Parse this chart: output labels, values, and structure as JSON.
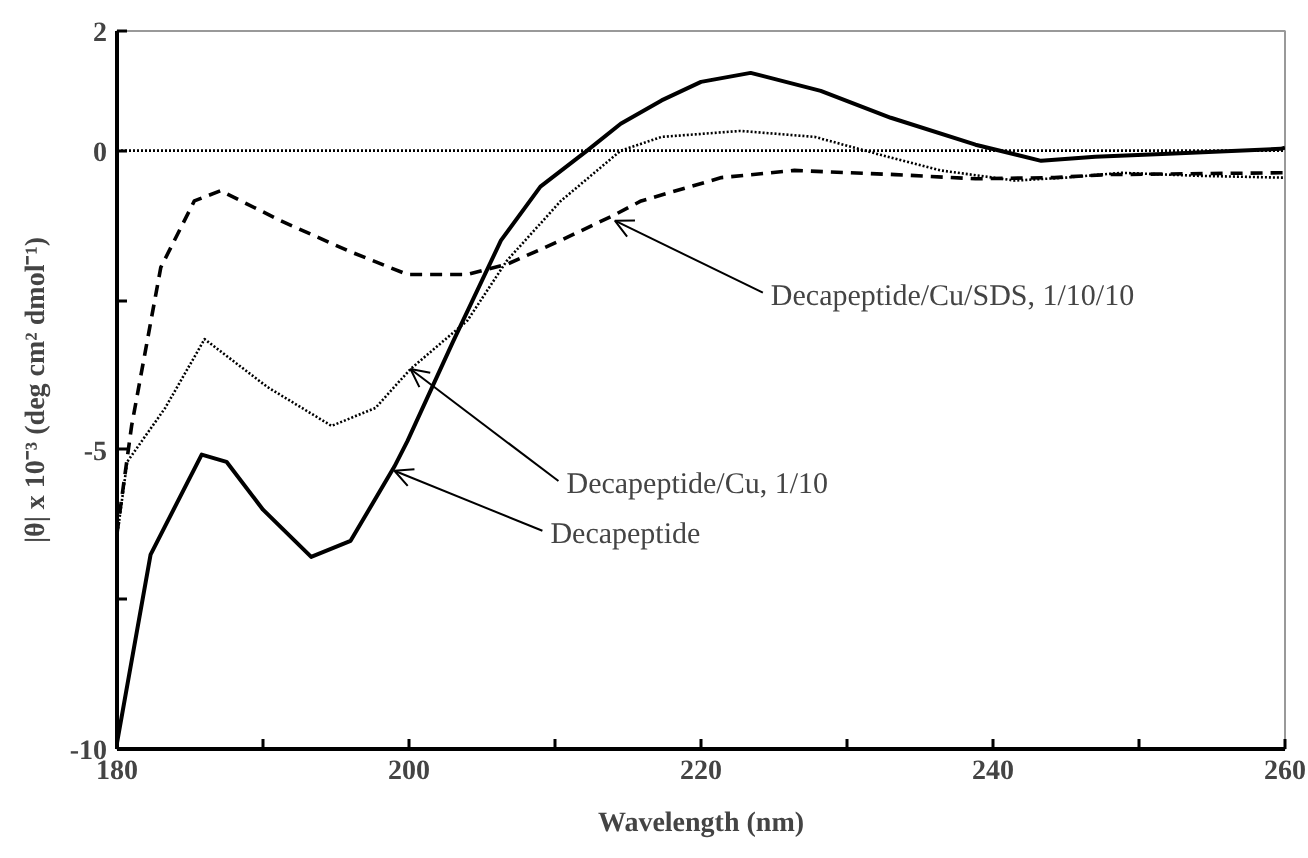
{
  "chart_data": {
    "type": "line",
    "xlabel": "Wavelength (nm)",
    "ylabel": "|θ| x 10⁻³ (deg cm² dmol⁻¹)",
    "xlim": [
      180,
      260
    ],
    "ylim": [
      -10,
      2
    ],
    "xticks": [
      180,
      {
        "value": 190,
        "label": null
      },
      200,
      {
        "value": 210,
        "label": null
      },
      220,
      {
        "value": 230,
        "label": null
      },
      240,
      {
        "value": 250,
        "label": null
      },
      260
    ],
    "yticks": [
      -10,
      {
        "value": -7.5,
        "label": null
      },
      -5,
      {
        "value": -2.5,
        "label": null
      },
      0,
      2
    ],
    "grid": false,
    "marker": "none",
    "ref_lines": [
      {
        "axis": "y",
        "value": 0,
        "color": "#000000",
        "line_style": "dotted"
      }
    ],
    "series": [
      {
        "color": "#000000",
        "line_style": "solid",
        "x": [
          180,
          182.3,
          185.8,
          187.5,
          190,
          193.3,
          196,
          199,
          199.9,
          203,
          206.3,
          209,
          212.2,
          214.5,
          217.3,
          220,
          223.4,
          228.2,
          233,
          238.8,
          243.3,
          247,
          252,
          259.7,
          260
        ],
        "values": [
          -9.9,
          -6.75,
          -5.08,
          -5.2,
          -6.0,
          -6.79,
          -6.52,
          -5.28,
          -4.85,
          -3.2,
          -1.5,
          -0.6,
          0,
          0.45,
          0.84,
          1.15,
          1.3,
          1.0,
          0.55,
          0.1,
          -0.17,
          -0.1,
          -0.05,
          0.03,
          0.05
        ]
      },
      {
        "color": "#000000",
        "line_style": "dotted",
        "x": [
          180,
          180.7,
          183.3,
          186,
          190.3,
          194.7,
          197.7,
          200.1,
          204,
          206.7,
          210.4,
          214.5,
          217.3,
          222.7,
          227.8,
          232.3,
          236.4,
          241.5,
          245,
          248.8,
          254,
          259.7,
          260
        ],
        "values": [
          -6.45,
          -5.2,
          -4.3,
          -3.15,
          -3.95,
          -4.6,
          -4.3,
          -3.65,
          -2.84,
          -1.84,
          -0.84,
          0,
          0.23,
          0.33,
          0.23,
          -0.07,
          -0.33,
          -0.5,
          -0.45,
          -0.37,
          -0.42,
          -0.45,
          -0.45
        ]
      },
      {
        "color": "#000000",
        "line_style": "dashed",
        "x": [
          180,
          180.3,
          181,
          183,
          185.3,
          187.1,
          191.2,
          195.8,
          199.9,
          204,
          206.7,
          210.4,
          214.1,
          215.9,
          221.4,
          226.4,
          233.3,
          238.8,
          244.2,
          247.8,
          259.7,
          260
        ],
        "values": [
          -6.4,
          -5.85,
          -4.6,
          -1.95,
          -0.84,
          -0.67,
          -1.17,
          -1.67,
          -2.07,
          -2.07,
          -1.9,
          -1.5,
          -1.07,
          -0.84,
          -0.45,
          -0.33,
          -0.4,
          -0.47,
          -0.45,
          -0.4,
          -0.37,
          -0.37
        ]
      }
    ],
    "annotations": [
      {
        "text": "Decapeptide/Cu/SDS, 1/10/10",
        "x": 214.1,
        "y": -1.17
      },
      {
        "text": "Decapeptide/Cu, 1/10",
        "x": 200.1,
        "y": -3.65
      },
      {
        "text": "Decapeptide",
        "x": 199,
        "y": -5.35
      }
    ]
  }
}
